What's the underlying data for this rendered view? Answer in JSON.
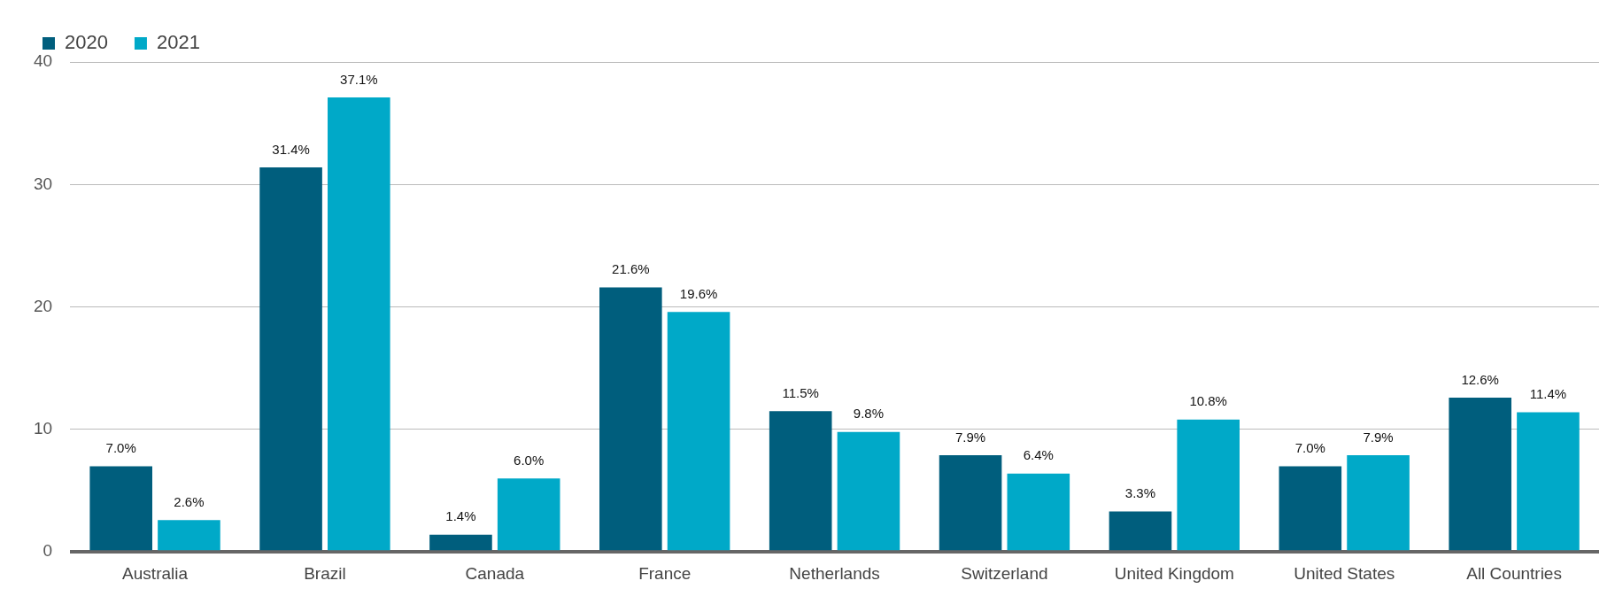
{
  "chart_data": {
    "type": "bar",
    "categories": [
      "Australia",
      "Brazil",
      "Canada",
      "France",
      "Netherlands",
      "Switzerland",
      "United Kingdom",
      "United States",
      "All Countries"
    ],
    "series": [
      {
        "name": "2020",
        "color": "#005e7d",
        "values": [
          7.0,
          31.4,
          1.4,
          21.6,
          11.5,
          7.9,
          3.3,
          7.0,
          12.6
        ],
        "value_labels": [
          "7.0%",
          "31.4%",
          "1.4%",
          "21.6%",
          "11.5%",
          "7.9%",
          "3.3%",
          "7.0%",
          "12.6%"
        ]
      },
      {
        "name": "2021",
        "color": "#00a9c8",
        "values": [
          2.6,
          37.1,
          6.0,
          19.6,
          9.8,
          6.4,
          10.8,
          7.9,
          11.4
        ],
        "value_labels": [
          "2.6%",
          "37.1%",
          "6.0%",
          "19.6%",
          "9.8%",
          "6.4%",
          "10.8%",
          "7.9%",
          "11.4%"
        ]
      }
    ],
    "ylim": [
      0,
      40
    ],
    "yticks": [
      0,
      10,
      20,
      30,
      40
    ],
    "grid": "y",
    "legend": "top left"
  }
}
